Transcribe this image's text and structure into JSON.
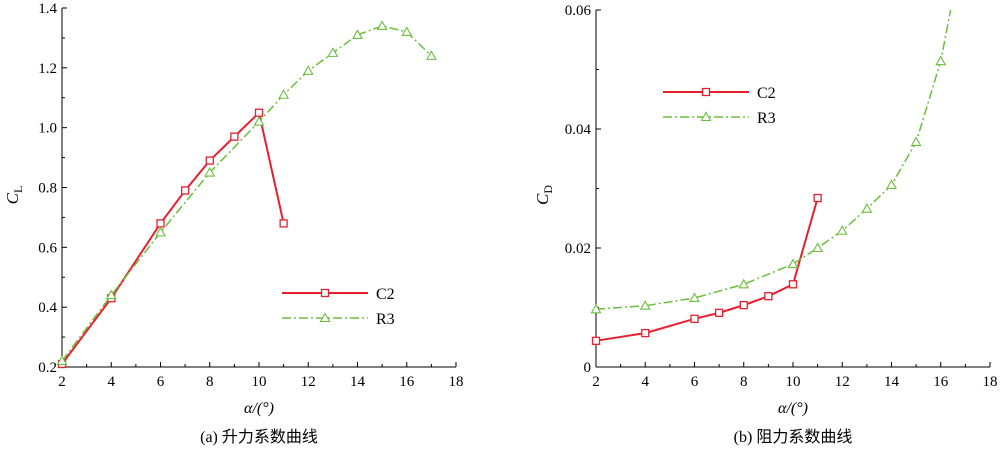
{
  "chart_data": [
    {
      "type": "line",
      "title": "",
      "caption": "(a)  升力系数曲线",
      "xlabel": "α/(°)",
      "ylabel": {
        "main": "C",
        "sub": "L"
      },
      "xlim": [
        2,
        18
      ],
      "ylim": [
        0.2,
        1.4
      ],
      "xticks": [
        "2",
        "4",
        "6",
        "8",
        "10",
        "12",
        "14",
        "16",
        "18"
      ],
      "yticks": [
        "0.2",
        "0.4",
        "0.6",
        "0.8",
        "1.0",
        "1.2",
        "1.4"
      ],
      "legend_position": "lower-right",
      "series": [
        {
          "name": "C2",
          "color": "#e8202e",
          "style": "solid",
          "marker": "square",
          "x": [
            2,
            4,
            6,
            7,
            8,
            9,
            10,
            11
          ],
          "y": [
            0.21,
            0.43,
            0.68,
            0.79,
            0.89,
            0.97,
            1.05,
            0.68
          ]
        },
        {
          "name": "R3",
          "color": "#6abf3c",
          "style": "dashdot",
          "marker": "triangle",
          "x": [
            2,
            4,
            6,
            8,
            10,
            11,
            12,
            13,
            14,
            15,
            16,
            17
          ],
          "y": [
            0.22,
            0.44,
            0.65,
            0.85,
            1.02,
            1.11,
            1.19,
            1.25,
            1.31,
            1.34,
            1.32,
            1.24
          ]
        }
      ]
    },
    {
      "type": "line",
      "title": "",
      "caption": "(b)  阻力系数曲线",
      "xlabel": "α/(°)",
      "ylabel": {
        "main": "C",
        "sub": "D"
      },
      "xlim": [
        2,
        18
      ],
      "ylim": [
        0,
        0.06
      ],
      "xticks": [
        "2",
        "4",
        "6",
        "8",
        "10",
        "12",
        "14",
        "16",
        "18"
      ],
      "yticks": [
        "0",
        "0.02",
        "0.04",
        "0.06"
      ],
      "legend_position": "upper-left",
      "series": [
        {
          "name": "C2",
          "color": "#e8202e",
          "style": "solid",
          "marker": "square",
          "x": [
            2,
            4,
            6,
            7,
            8,
            9,
            10,
            11
          ],
          "y": [
            0.0044,
            0.0057,
            0.0081,
            0.0091,
            0.0104,
            0.0119,
            0.0139,
            0.0284
          ]
        },
        {
          "name": "R3",
          "color": "#6abf3c",
          "style": "dashdot",
          "marker": "triangle",
          "x": [
            2,
            4,
            6,
            8,
            10,
            11,
            12,
            13,
            14,
            15,
            16
          ],
          "y": [
            0.0097,
            0.0103,
            0.0116,
            0.0139,
            0.0173,
            0.02,
            0.0229,
            0.0266,
            0.0306,
            0.0378,
            0.0514
          ],
          "tail": {
            "x": [
              16.4
            ],
            "y": [
              0.06
            ]
          }
        }
      ]
    }
  ]
}
